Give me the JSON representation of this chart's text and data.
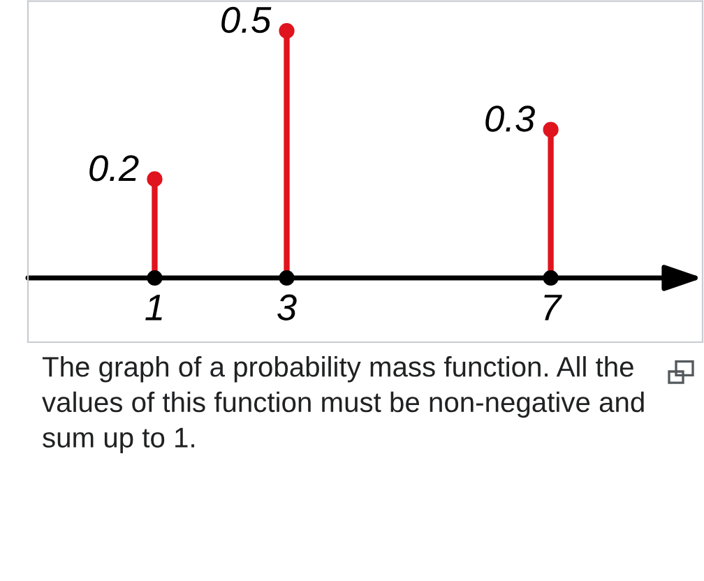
{
  "chart_data": {
    "type": "lollipop",
    "x": [
      1,
      3,
      7
    ],
    "values": [
      0.2,
      0.5,
      0.3
    ],
    "color": "#e0141e",
    "xlim": [
      -0.92,
      9.3
    ],
    "xticks": [
      1,
      3,
      7
    ],
    "ylim": [
      -0.13,
      0.56
    ],
    "tick_labels": "x",
    "data_labels": true,
    "grid": false,
    "marker": "circle",
    "annotations": [
      "The graph of a probability mass function. All the values of this function must be non-negative and sum up to 1."
    ]
  }
}
